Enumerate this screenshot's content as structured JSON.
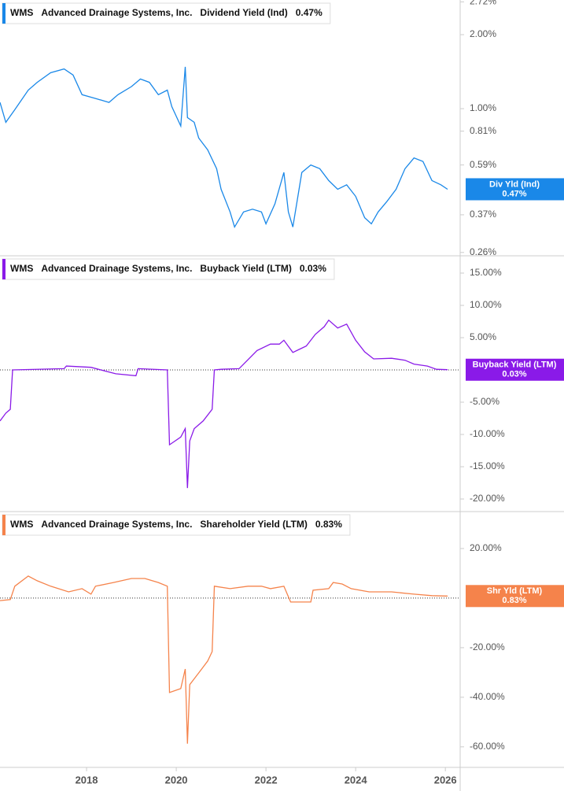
{
  "ticker": "WMS",
  "company": "Advanced Drainage Systems, Inc.",
  "chart_data": [
    {
      "type": "line",
      "title": "Dividend Yield (Ind)",
      "log_scale": true,
      "zero_line": false,
      "xlim": [
        2016.07,
        2026.33
      ],
      "ylim": [
        0.252,
        2.767
      ],
      "yticks": [
        {
          "value": 2.72,
          "label": "2.72%"
        },
        {
          "value": 2,
          "label": "2.00%"
        },
        {
          "value": 1,
          "label": "1.00%"
        },
        {
          "value": 0.81,
          "label": "0.81%"
        },
        {
          "value": 0.59,
          "label": "0.59%"
        },
        {
          "value": 0.37,
          "label": "0.37%"
        },
        {
          "value": 0.26,
          "label": "0.26%"
        }
      ],
      "x": [
        2016.07,
        2016.2,
        2016.4,
        2016.7,
        2016.9,
        2017.2,
        2017.5,
        2017.7,
        2017.9,
        2018.2,
        2018.5,
        2018.7,
        2019.0,
        2019.2,
        2019.4,
        2019.6,
        2019.8,
        2019.9,
        2020.1,
        2020.2,
        2020.25,
        2020.4,
        2020.5,
        2020.7,
        2020.9,
        2021.0,
        2021.2,
        2021.3,
        2021.5,
        2021.7,
        2021.9,
        2022.0,
        2022.2,
        2022.4,
        2022.5,
        2022.6,
        2022.8,
        2023.0,
        2023.2,
        2023.4,
        2023.6,
        2023.8,
        2024.0,
        2024.2,
        2024.35,
        2024.5,
        2024.7,
        2024.9,
        2025.1,
        2025.3,
        2025.5,
        2025.7,
        2025.9,
        2026.05
      ],
      "series": [
        {
          "name": "Div Yld (Ind)",
          "color": "#1a88e8",
          "last_label": "0.47%",
          "values": [
            1.06,
            0.88,
            0.99,
            1.19,
            1.28,
            1.4,
            1.45,
            1.37,
            1.14,
            1.1,
            1.06,
            1.14,
            1.23,
            1.32,
            1.28,
            1.14,
            1.19,
            1.02,
            0.85,
            1.48,
            0.92,
            0.88,
            0.76,
            0.68,
            0.57,
            0.47,
            0.38,
            0.33,
            0.38,
            0.39,
            0.38,
            0.34,
            0.41,
            0.55,
            0.38,
            0.33,
            0.55,
            0.59,
            0.57,
            0.51,
            0.47,
            0.49,
            0.44,
            0.36,
            0.34,
            0.38,
            0.42,
            0.47,
            0.57,
            0.63,
            0.61,
            0.51,
            0.49,
            0.47
          ]
        }
      ]
    },
    {
      "type": "line",
      "title": "Buyback Yield (LTM)",
      "log_scale": false,
      "zero_line": true,
      "xlim": [
        2016.07,
        2026.33
      ],
      "ylim": [
        -21.95,
        17.68
      ],
      "yticks": [
        {
          "value": 15,
          "label": "15.00%"
        },
        {
          "value": 10,
          "label": "10.00%"
        },
        {
          "value": 5,
          "label": "5.00%"
        },
        {
          "value": -5,
          "label": "-5.00%"
        },
        {
          "value": -10,
          "label": "-10.00%"
        },
        {
          "value": -15,
          "label": "-15.00%"
        },
        {
          "value": -20,
          "label": "-20.00%"
        }
      ],
      "x": [
        2016.07,
        2016.2,
        2016.3,
        2016.35,
        2017.5,
        2017.55,
        2018.1,
        2018.65,
        2019.1,
        2019.15,
        2019.8,
        2019.85,
        2020.1,
        2020.2,
        2020.25,
        2020.3,
        2020.4,
        2020.6,
        2020.8,
        2020.85,
        2021.0,
        2021.4,
        2021.6,
        2021.8,
        2022.1,
        2022.3,
        2022.4,
        2022.6,
        2022.9,
        2023.1,
        2023.3,
        2023.4,
        2023.6,
        2023.8,
        2024.0,
        2024.2,
        2024.4,
        2024.8,
        2025.1,
        2025.3,
        2025.6,
        2025.8,
        2026.05
      ],
      "series": [
        {
          "name": "Buyback Yield (LTM)",
          "color": "#8a1ae8",
          "last_label": "0.03%",
          "values": [
            -7.9,
            -6.7,
            -6.1,
            0,
            0.2,
            0.6,
            0.4,
            -0.6,
            -0.9,
            0.2,
            0,
            -11.6,
            -10.4,
            -9.1,
            -18.3,
            -11,
            -9.1,
            -7.9,
            -6.1,
            0,
            0.1,
            0.2,
            1.6,
            3,
            4,
            4,
            4.6,
            2.7,
            3.7,
            5.5,
            6.7,
            7.7,
            6.5,
            7.1,
            4.6,
            2.8,
            1.7,
            1.8,
            1.5,
            0.9,
            0.6,
            0.1,
            0.03
          ]
        }
      ]
    },
    {
      "type": "line",
      "title": "Shareholder Yield (LTM)",
      "log_scale": false,
      "zero_line": true,
      "xlim": [
        2016.07,
        2026.33
      ],
      "ylim": [
        -68.3,
        34.9
      ],
      "yticks": [
        {
          "value": 20,
          "label": "20.00%"
        },
        {
          "value": -20,
          "label": "-20.00%"
        },
        {
          "value": -40,
          "label": "-40.00%"
        },
        {
          "value": -60,
          "label": "-60.00%"
        }
      ],
      "xticks": [
        2018,
        2020,
        2022,
        2024,
        2026
      ],
      "x": [
        2016.07,
        2016.3,
        2016.4,
        2016.7,
        2016.9,
        2017.2,
        2017.6,
        2017.9,
        2018.1,
        2018.2,
        2018.6,
        2019.0,
        2019.3,
        2019.6,
        2019.8,
        2019.85,
        2020.1,
        2020.2,
        2020.25,
        2020.3,
        2020.5,
        2020.7,
        2020.8,
        2020.85,
        2021.2,
        2021.6,
        2021.9,
        2022.1,
        2022.4,
        2022.55,
        2023.0,
        2023.05,
        2023.4,
        2023.5,
        2023.7,
        2023.9,
        2024.3,
        2024.8,
        2025.3,
        2025.7,
        2026.05
      ],
      "series": [
        {
          "name": "Shr Yld (LTM)",
          "color": "#f5834b",
          "last_label": "0.83%",
          "values": [
            -1,
            -0.6,
            4.8,
            8.9,
            7,
            4.8,
            2.5,
            3.8,
            1.6,
            4.8,
            6.3,
            7.9,
            7.9,
            6.3,
            4.8,
            -38.1,
            -36.5,
            -28.6,
            -58.7,
            -34.9,
            -30.2,
            -25.4,
            -21.6,
            4.8,
            3.8,
            4.8,
            4.8,
            3.8,
            4.8,
            -1.6,
            -1.6,
            3.2,
            3.8,
            6.3,
            5.7,
            3.8,
            2.5,
            2.5,
            1.6,
            1.0,
            0.83
          ]
        }
      ]
    }
  ]
}
